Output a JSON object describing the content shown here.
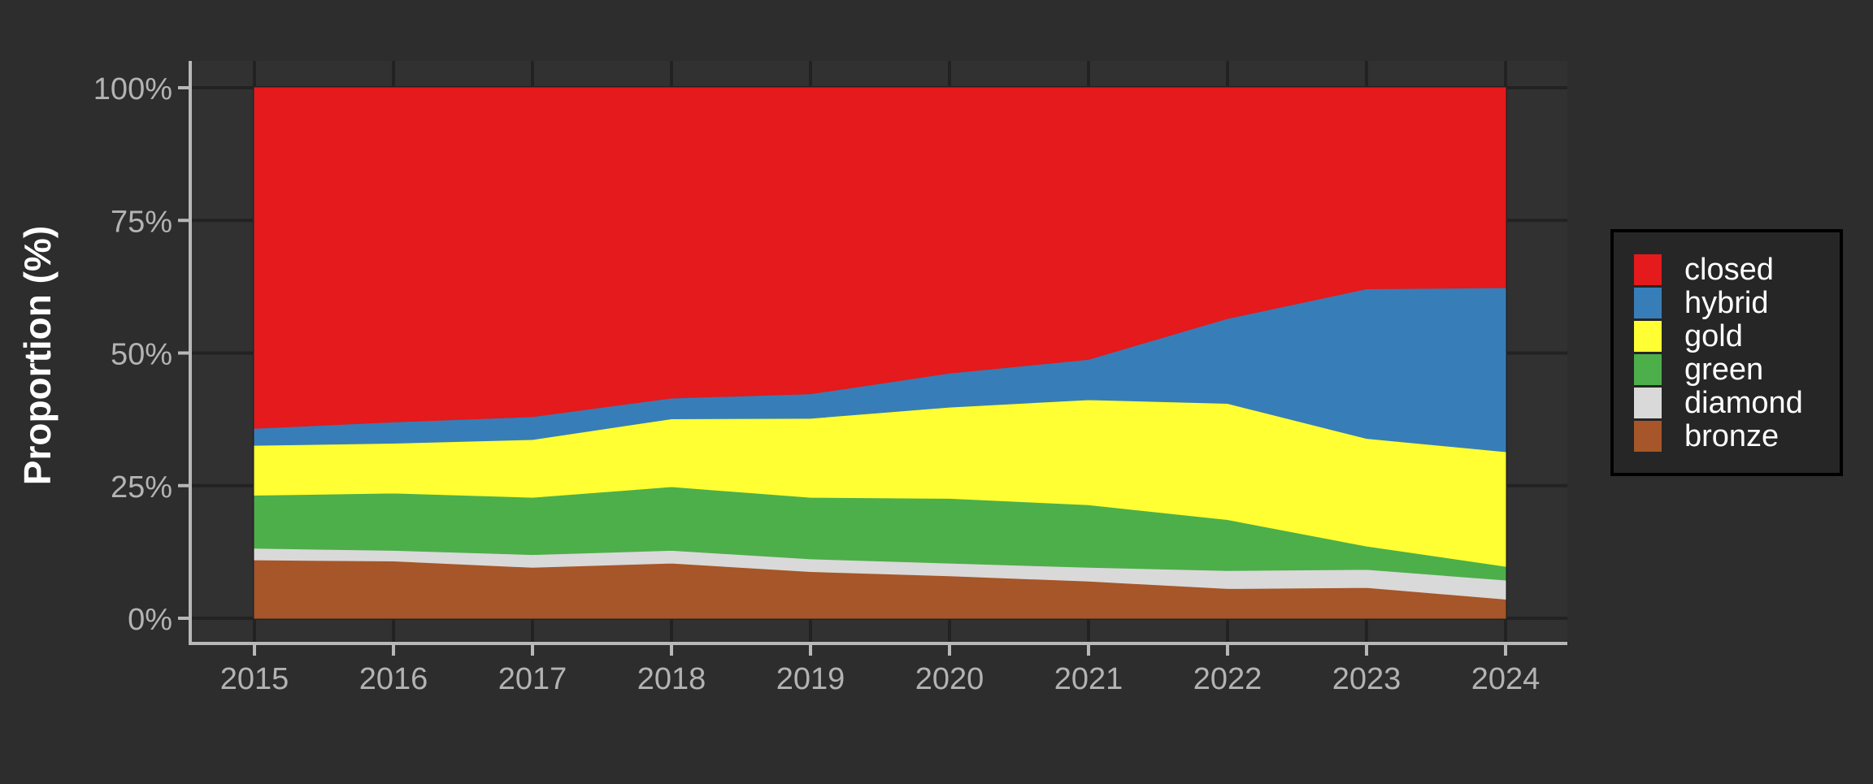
{
  "chart_data": {
    "type": "area",
    "stacked": true,
    "normalized": true,
    "x": [
      2015,
      2016,
      2017,
      2018,
      2019,
      2020,
      2021,
      2022,
      2023,
      2024
    ],
    "x_tick_labels": [
      "2015",
      "2016",
      "2017",
      "2018",
      "2019",
      "2020",
      "2021",
      "2022",
      "2023",
      "2024"
    ],
    "ylabel": "Proportion (%)",
    "xlabel": "",
    "ylim": [
      0,
      100
    ],
    "y_ticks": [
      0,
      25,
      50,
      75,
      100
    ],
    "y_tick_labels": [
      "0%",
      "25%",
      "50%",
      "75%",
      "100%"
    ],
    "grid": true,
    "legend_position": "right",
    "series": [
      {
        "name": "bronze",
        "color": "#a65628",
        "values": [
          11.0,
          10.8,
          9.6,
          10.4,
          8.8,
          8.0,
          7.0,
          5.6,
          5.8,
          3.6
        ]
      },
      {
        "name": "diamond",
        "color": "#d9d9d9",
        "values": [
          2.2,
          2.0,
          2.4,
          2.4,
          2.4,
          2.4,
          2.6,
          3.4,
          3.4,
          3.6
        ]
      },
      {
        "name": "green",
        "color": "#4daf4a",
        "values": [
          10.0,
          10.8,
          10.8,
          12.0,
          11.6,
          12.2,
          11.8,
          9.6,
          4.4,
          2.6
        ]
      },
      {
        "name": "gold",
        "color": "#ffff33",
        "values": [
          9.4,
          9.4,
          10.9,
          12.8,
          14.9,
          17.2,
          19.8,
          21.9,
          20.3,
          21.6
        ]
      },
      {
        "name": "hybrid",
        "color": "#377eb8",
        "values": [
          3.2,
          4.0,
          4.3,
          3.9,
          4.6,
          6.4,
          7.6,
          16.0,
          28.2,
          30.9
        ]
      },
      {
        "name": "closed",
        "color": "#e41a1c",
        "values": [
          64.2,
          63.0,
          62.0,
          58.5,
          57.7,
          53.8,
          51.2,
          43.5,
          37.9,
          37.7
        ]
      }
    ],
    "legend_order": [
      "closed",
      "hybrid",
      "gold",
      "green",
      "diamond",
      "bronze"
    ]
  },
  "colors": {
    "page_background": "#2d2d2d",
    "panel_background": "#313131",
    "grid_line": "#222222",
    "axis_line": "#b8b8b8",
    "tick_text": "#b3b3b3",
    "title_text": "#ffffff",
    "legend_background": "#262626",
    "legend_border": "#000000",
    "legend_text": "#ffffff"
  }
}
